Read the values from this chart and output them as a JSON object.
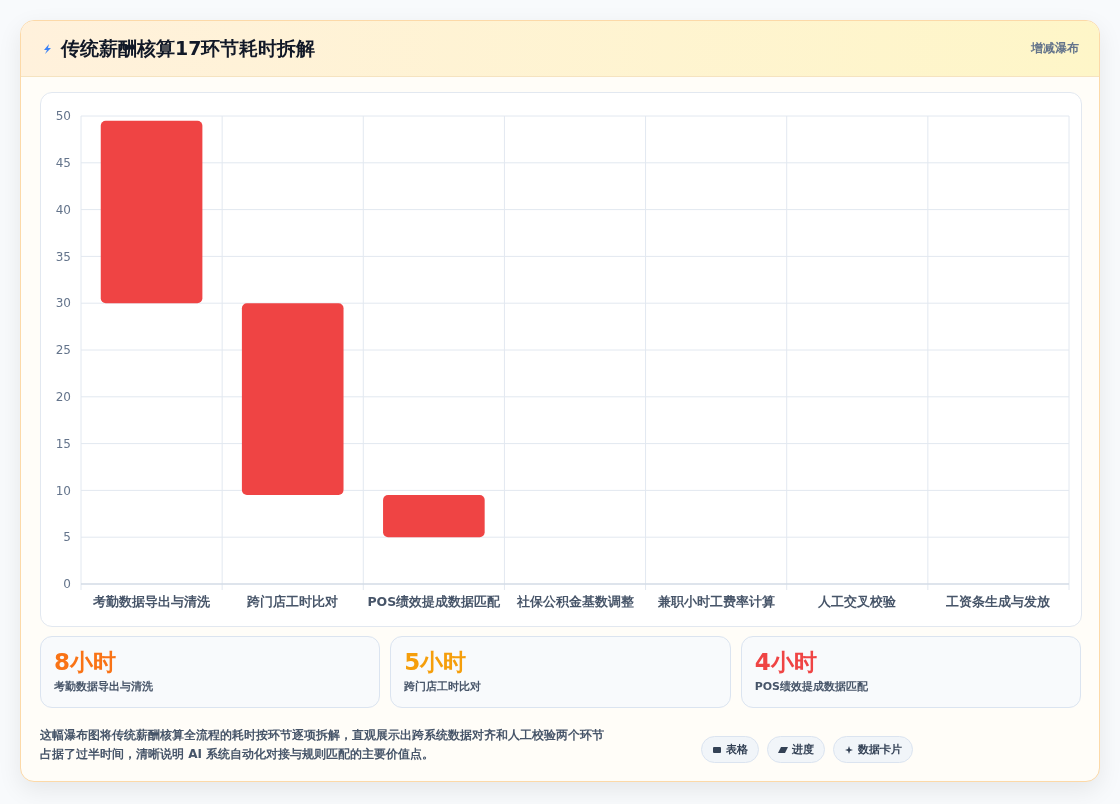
{
  "chart_data": {
    "type": "bar",
    "title": "传统薪酬核算17环节耗时拆解",
    "categories": [
      "考勤数据导出与清洗",
      "跨门店工时比对",
      "POS绩效提成数据匹配",
      "社保公积金基数调整",
      "兼职小时工费率计算",
      "人工交叉校验",
      "工资条生成与发放"
    ],
    "values": [
      19.5,
      20.5,
      4.5,
      null,
      null,
      null,
      null
    ],
    "base": [
      30,
      9.5,
      5,
      null,
      null,
      null,
      null
    ],
    "color": "#ef4444",
    "ylim": [
      0,
      50
    ],
    "yticks": [
      0,
      5,
      10,
      15,
      20,
      25,
      30,
      35,
      40,
      45,
      50
    ],
    "grid": true,
    "annotations": [
      "增减瀑布",
      "8小时",
      "考勤数据导出与清洗",
      "5小时",
      "跨门店工时比对",
      "4小时",
      "POS绩效提成数据匹配",
      "这幅瀑布图将传统薪酬核算全流程的耗时按环节逐项拆解，直观展示出跨系统数据对齐和人工校验两个环节占据了过半时间，清晰说明 AI 系统自动化对接与规则匹配的主要价值点。",
      "表格",
      "进度",
      "数据卡片"
    ]
  }
}
